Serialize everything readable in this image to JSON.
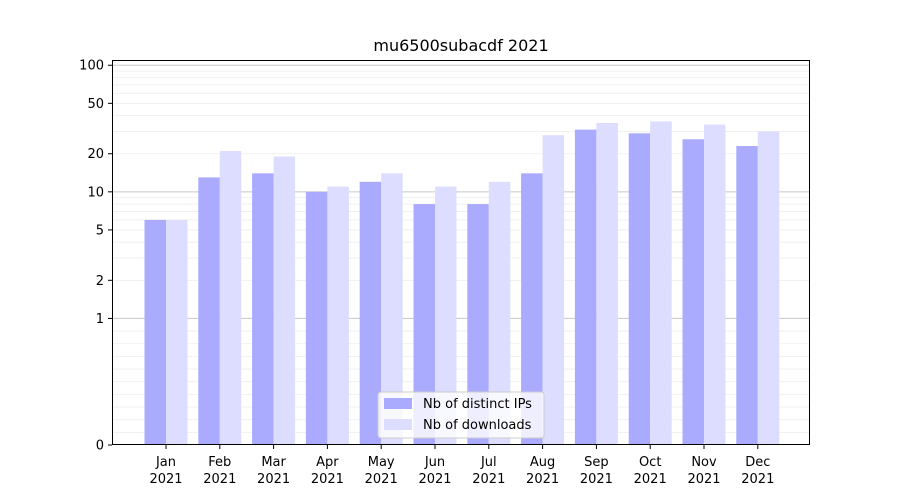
{
  "chart_data": {
    "type": "bar",
    "title": "mu6500subacdf 2021",
    "xlabel": "",
    "ylabel": "",
    "y_scale": "symlog",
    "ylim": [
      0,
      110
    ],
    "y_ticks": [
      {
        "value": 0,
        "label": "0"
      },
      {
        "value": 1,
        "label": "1"
      },
      {
        "value": 2,
        "label": "2"
      },
      {
        "value": 5,
        "label": "5"
      },
      {
        "value": 10,
        "label": "10"
      },
      {
        "value": 20,
        "label": "20"
      },
      {
        "value": 50,
        "label": "50"
      },
      {
        "value": 100,
        "label": "100"
      }
    ],
    "grid": true,
    "legend_position": "bottom-center",
    "categories": [
      {
        "month": "Jan",
        "year": "2021"
      },
      {
        "month": "Feb",
        "year": "2021"
      },
      {
        "month": "Mar",
        "year": "2021"
      },
      {
        "month": "Apr",
        "year": "2021"
      },
      {
        "month": "May",
        "year": "2021"
      },
      {
        "month": "Jun",
        "year": "2021"
      },
      {
        "month": "Jul",
        "year": "2021"
      },
      {
        "month": "Aug",
        "year": "2021"
      },
      {
        "month": "Sep",
        "year": "2021"
      },
      {
        "month": "Oct",
        "year": "2021"
      },
      {
        "month": "Nov",
        "year": "2021"
      },
      {
        "month": "Dec",
        "year": "2021"
      }
    ],
    "series": [
      {
        "name": "Nb of distinct IPs",
        "color": "#aaaaff",
        "values": [
          6,
          13,
          14,
          10,
          12,
          8,
          8,
          14,
          31,
          29,
          26,
          23
        ]
      },
      {
        "name": "Nb of downloads",
        "color": "#ddddff",
        "values": [
          6,
          21,
          19,
          11,
          14,
          11,
          12,
          28,
          35,
          36,
          34,
          30
        ]
      }
    ]
  }
}
